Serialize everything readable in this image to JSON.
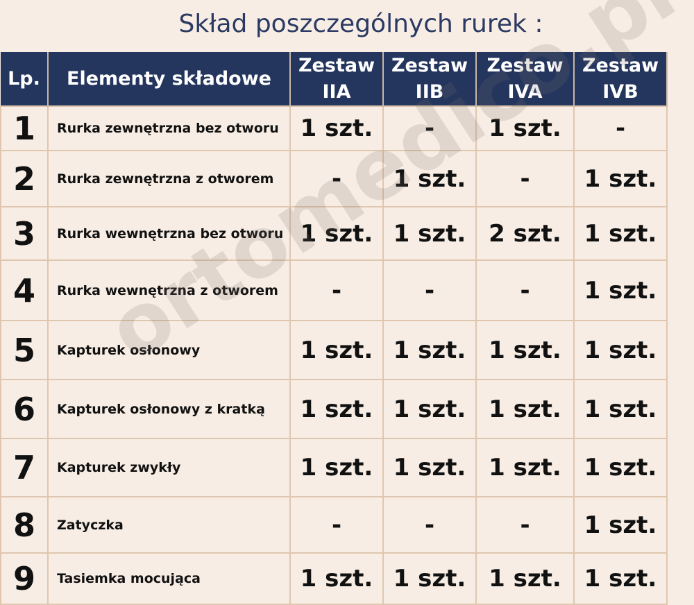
{
  "title": "Skład poszczególnych rurek :",
  "watermark": "ortomedico.pl",
  "colors": {
    "header_bg": "#24365e",
    "background": "#f7ede4",
    "grid": "#e0c6ae"
  },
  "headers": [
    "Lp.",
    "Elementy składowe",
    "Zestaw IIA",
    "Zestaw IIB",
    "Zestaw IVA",
    "Zestaw IVB"
  ],
  "rows": [
    {
      "lp": "1",
      "name": "Rurka zewnętrzna bez otworu",
      "values": [
        "1 szt.",
        "-",
        "1 szt.",
        "-"
      ]
    },
    {
      "lp": "2",
      "name": "Rurka zewnętrzna z otworem",
      "values": [
        "-",
        "1 szt.",
        "-",
        "1 szt."
      ]
    },
    {
      "lp": "3",
      "name": "Rurka wewnętrzna bez otworu",
      "values": [
        "1 szt.",
        "1 szt.",
        "2 szt.",
        "1 szt."
      ]
    },
    {
      "lp": "4",
      "name": "Rurka wewnętrzna z otworem",
      "values": [
        "-",
        "-",
        "-",
        "1 szt."
      ]
    },
    {
      "lp": "5",
      "name": "Kapturek osłonowy",
      "values": [
        "1 szt.",
        "1 szt.",
        "1 szt.",
        "1 szt."
      ]
    },
    {
      "lp": "6",
      "name": "Kapturek osłonowy z kratką",
      "values": [
        "1 szt.",
        "1 szt.",
        "1 szt.",
        "1 szt."
      ]
    },
    {
      "lp": "7",
      "name": "Kapturek zwykły",
      "values": [
        "1 szt.",
        "1 szt.",
        "1 szt.",
        "1 szt."
      ]
    },
    {
      "lp": "8",
      "name": "Zatyczka",
      "values": [
        "-",
        "-",
        "-",
        "1 szt."
      ]
    },
    {
      "lp": "9",
      "name": "Tasiemka mocująca",
      "values": [
        "1 szt.",
        "1 szt.",
        "1 szt.",
        "1 szt."
      ]
    }
  ]
}
